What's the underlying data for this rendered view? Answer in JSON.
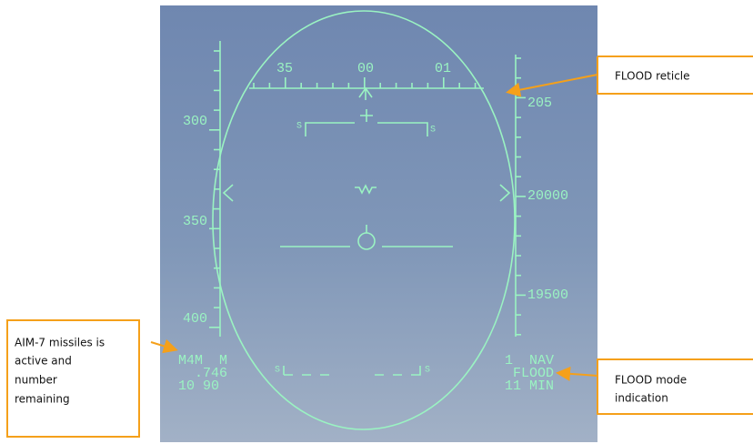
{
  "hud": {
    "heading_scale": [
      "35",
      "00",
      "01"
    ],
    "airspeed_scale": [
      "300",
      "350",
      "400"
    ],
    "altitude_scale": [
      "205",
      "20000",
      "19500"
    ],
    "pitch_marks": [
      "S",
      "S",
      "S",
      "S"
    ],
    "left_block": [
      "M4M  M",
      "  .746",
      "10 90"
    ],
    "right_block": [
      "1  NAV",
      "FLOOD",
      "11 MIN"
    ]
  },
  "callouts": [
    {
      "lines": [
        "FLOOD reticle"
      ]
    },
    {
      "lines": [
        "AIM-7 missiles is",
        "active and",
        "number",
        "remaining"
      ]
    },
    {
      "lines": [
        "FLOOD mode",
        "indication"
      ]
    }
  ]
}
